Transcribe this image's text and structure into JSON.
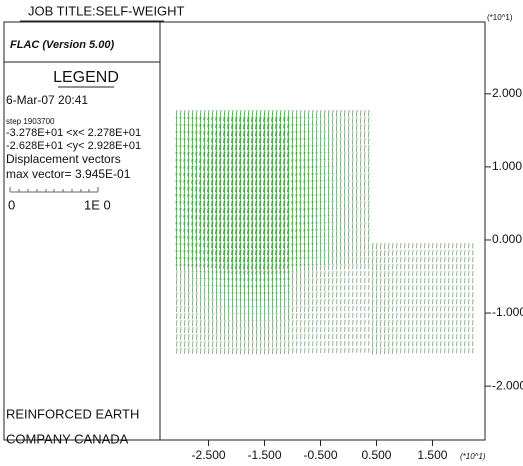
{
  "header": {
    "job_title": "JOB TITLE:SELF-WEIGHT",
    "program": "FLAC (Version 5.00)"
  },
  "legend": {
    "title": "LEGEND",
    "date": "6-Mar-07 20:41",
    "step": "step  1903700",
    "x_range": "-3.278E+01 <x< 2.278E+01",
    "y_range": "-2.628E+01 <y< 2.928E+01",
    "plot_item": "Displacement vectors",
    "max_vector": "max vector= 3.945E-01",
    "scale_start": "0",
    "scale_end": "1E 0"
  },
  "footer": {
    "line1": "REINFORCED EARTH",
    "line2": "COMPANY CANADA"
  },
  "chart_data": {
    "type": "vector",
    "y_multiplier": "(*10^1)",
    "x_multiplier": "(*10^1)",
    "xlim": [
      -3.278,
      2.278
    ],
    "ylim": [
      -2.628,
      2.928
    ],
    "xticks": [
      {
        "value": -2.5,
        "label": "-2.500"
      },
      {
        "value": -1.5,
        "label": "-1.500"
      },
      {
        "value": -0.5,
        "label": "-0.500"
      },
      {
        "value": 0.5,
        "label": "0.500"
      },
      {
        "value": 1.5,
        "label": "1.500"
      }
    ],
    "yticks": [
      {
        "value": 2,
        "label": "2.000"
      },
      {
        "value": 1,
        "label": "1.000"
      },
      {
        "value": 0,
        "label": "0.000"
      },
      {
        "value": -1,
        "label": "-1.000"
      },
      {
        "value": -2,
        "label": "-2.000"
      }
    ],
    "color": "#2f9e2f"
  }
}
